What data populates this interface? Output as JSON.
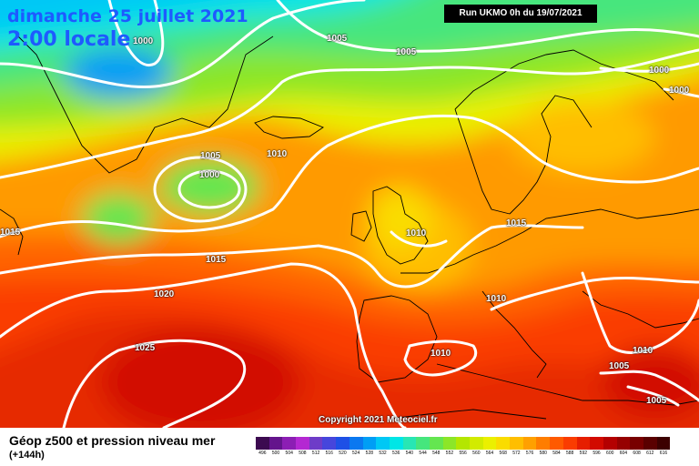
{
  "header": {
    "date_line": "dimanche 25 juillet 2021",
    "time_line": "2:00 locale",
    "run_label": "Run UKMO 0h du 19/07/2021"
  },
  "copyright": "Copyright 2021 Meteociel.fr",
  "footer": {
    "title": "Géop z500 et pression niveau mer",
    "subtitle": "(+144h)"
  },
  "scale": {
    "labels": [
      "496",
      "500",
      "504",
      "508",
      "512",
      "516",
      "520",
      "524",
      "528",
      "532",
      "536",
      "540",
      "544",
      "548",
      "552",
      "556",
      "560",
      "564",
      "568",
      "572",
      "576",
      "580",
      "584",
      "588",
      "592",
      "596",
      "600",
      "604",
      "608",
      "612",
      "616"
    ],
    "colors": [
      "#3c0a50",
      "#64148c",
      "#8c1eb4",
      "#b428d2",
      "#6e3cc8",
      "#4646dc",
      "#1e50e6",
      "#0a78f0",
      "#009ef5",
      "#00c8f5",
      "#00e6e6",
      "#28e6b4",
      "#46e67d",
      "#64e650",
      "#8ce628",
      "#b4e600",
      "#d2eb00",
      "#ebf000",
      "#fadc00",
      "#ffbe00",
      "#ffa000",
      "#ff7d00",
      "#ff5a00",
      "#fa3c00",
      "#e61e00",
      "#d20a00",
      "#b40000",
      "#960000",
      "#780000",
      "#5a0000",
      "#3c0000"
    ]
  },
  "pressure_labels": [
    {
      "text": "1000",
      "id": "p1000-greenland"
    },
    {
      "text": "1005",
      "id": "p1005-north"
    },
    {
      "text": "1005",
      "id": "p1005-norway-sea"
    },
    {
      "text": "1000",
      "id": "p1000-russia"
    },
    {
      "text": "1000",
      "id": "p1000-russia-edge"
    },
    {
      "text": "1005",
      "id": "p1005-low"
    },
    {
      "text": "1000",
      "id": "p1000-low"
    },
    {
      "text": "1010",
      "id": "p1010-atlantic"
    },
    {
      "text": "1015",
      "id": "p1015-west"
    },
    {
      "text": "1015",
      "id": "p1015-mid-atlantic"
    },
    {
      "text": "1010",
      "id": "p1010-uk"
    },
    {
      "text": "1015",
      "id": "p1015-baltic"
    },
    {
      "text": "1020",
      "id": "p1020-azores"
    },
    {
      "text": "1025",
      "id": "p1025-azores"
    },
    {
      "text": "1010",
      "id": "p1010-france"
    },
    {
      "text": "1010",
      "id": "p1010-spain"
    },
    {
      "text": "1010",
      "id": "p1010-east"
    },
    {
      "text": "1005",
      "id": "p1005-east"
    },
    {
      "text": "1005",
      "id": "p1005-southeast"
    }
  ]
}
